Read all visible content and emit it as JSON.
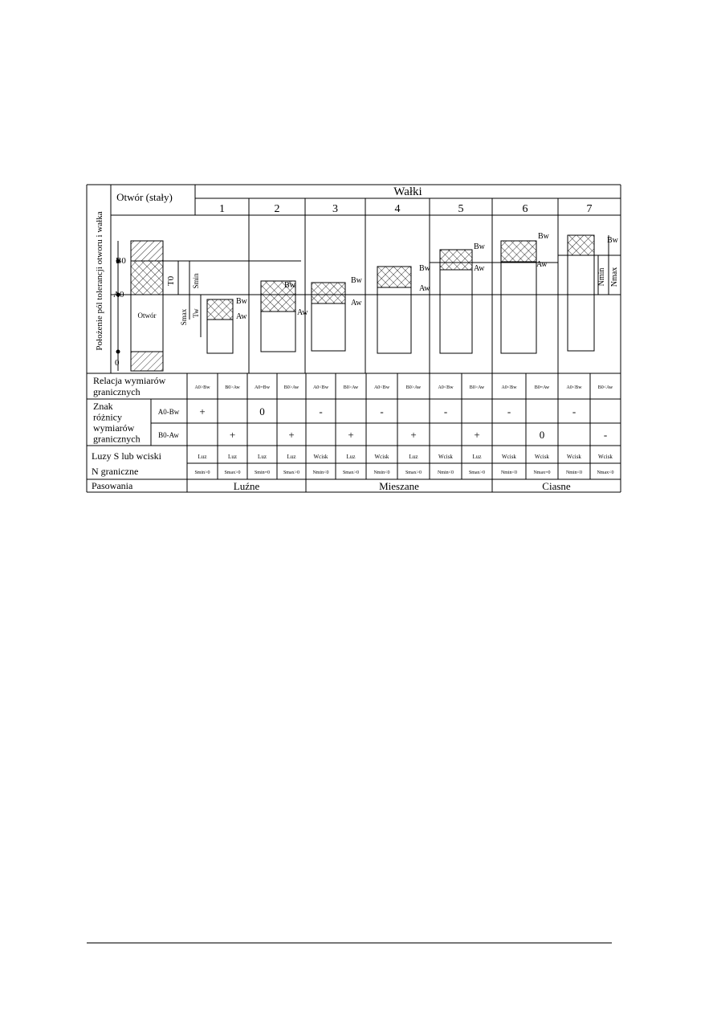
{
  "table": {
    "side_label": "Położenie pól tolerancji otworu i wałka",
    "hole_header": "Otwór (stały)",
    "shafts_header": "Wałki",
    "shaft_numbers": [
      "1",
      "2",
      "3",
      "4",
      "5",
      "6",
      "7"
    ],
    "diagram_labels": {
      "B0": "B0",
      "A0": "A0",
      "zero": "0",
      "hole": "Otwór",
      "T0": "T0",
      "Tw": "Tw",
      "Smin": "Smin",
      "Smax": "Smax",
      "Bw": "Bw",
      "Aw": "Aw",
      "Nmin": "Nmin",
      "Nmax": "Nmax"
    },
    "relation_label": [
      "Relacja wymiarów",
      "granicznych"
    ],
    "relation_values": [
      "A0>Bw",
      "B0>Aw",
      "A0=Bw",
      "B0>Aw",
      "A0<Bw",
      "B0>Aw",
      "A0<Bw",
      "B0>Aw",
      "A0<Bw",
      "B0>Aw",
      "A0<Bw",
      "B0=Aw",
      "A0<Bw",
      "B0<Aw"
    ],
    "sign_label": [
      "Znak",
      "różnicy",
      "wymiarów",
      "granicznych"
    ],
    "sign_row1_label": "A0-Bw",
    "sign_row2_label": "B0-Aw",
    "sign_row1": [
      "+",
      "0",
      "-",
      "-",
      "-",
      "-",
      "-"
    ],
    "sign_row2": [
      "+",
      "+",
      "+",
      "+",
      "+",
      "0",
      "-"
    ],
    "clearance_label": [
      "Luzy S lub wciski",
      "N graniczne"
    ],
    "clearance_type": [
      "Luz",
      "Luz",
      "Luz",
      "Luz",
      "Wcisk",
      "Luz",
      "Wcisk",
      "Luz",
      "Wcisk",
      "Luz",
      "Wcisk",
      "Wcisk",
      "Wcisk",
      "Wcisk"
    ],
    "clearance_value": [
      "Smin>0",
      "Smax>0",
      "Smin=0",
      "Smax>0",
      "Nmin<0",
      "Smax>0",
      "Nmin<0",
      "Smax>0",
      "Nmin<0",
      "Smax>0",
      "Nmin<0",
      "Nmax=0",
      "Nmin<0",
      "Nmax<0"
    ],
    "fits_label": "Pasowania",
    "fits": [
      "Luźne",
      "Mieszane",
      "Ciasne"
    ]
  }
}
